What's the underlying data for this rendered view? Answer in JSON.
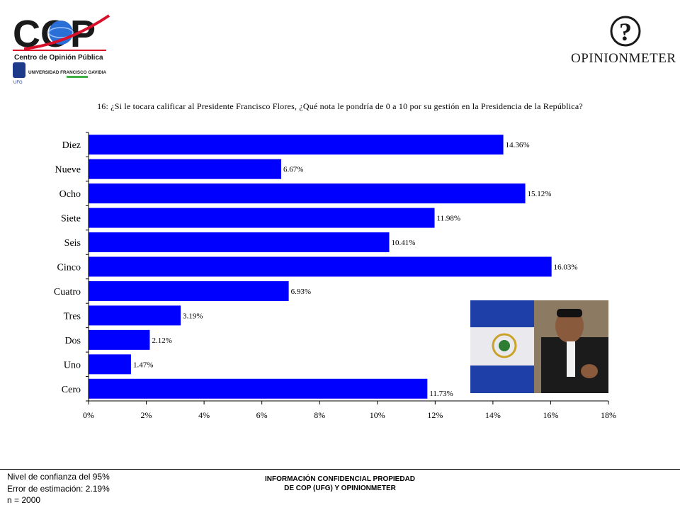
{
  "header": {
    "cop_logo_text": "COP",
    "cop_subtitle": "Centro de Opinión Pública",
    "university": "UNIVERSIDAD FRANCISCO GAVIDIA",
    "ufg_short": "UFG",
    "opinion_logo_icon": "question-mark-circle-icon",
    "opinion_brand": "OPINIONMETER"
  },
  "question": "16: ¿Si le tocara calificar al Presidente Francisco Flores, ¿Qué nota le pondría de 0 a 10 por su gestión en la Presidencia de la República?",
  "chart_data": {
    "type": "bar",
    "orientation": "horizontal",
    "categories": [
      "Diez",
      "Nueve",
      "Ocho",
      "Siete",
      "Seis",
      "Cinco",
      "Cuatro",
      "Tres",
      "Dos",
      "Uno",
      "Cero"
    ],
    "values": [
      14.36,
      6.67,
      15.12,
      11.98,
      10.41,
      16.03,
      6.93,
      3.19,
      2.12,
      1.47,
      11.73
    ],
    "data_labels": [
      "14.36%",
      "6.67%",
      "15.12%",
      "11.98%",
      "10.41%",
      "16.03%",
      "6.93%",
      "3.19%",
      "2.12%",
      "1.47%",
      "11.73%"
    ],
    "x_ticks": [
      "0%",
      "2%",
      "4%",
      "6%",
      "8%",
      "10%",
      "12%",
      "14%",
      "16%",
      "18%"
    ],
    "xlim": [
      0,
      18
    ],
    "bar_color": "#0000ff",
    "grid": false,
    "legend": "none"
  },
  "photo": {
    "description_icon": "photo-placeholder"
  },
  "footer": {
    "confidence": "Nivel de confianza del 95%",
    "error": "Error de estimación: 2.19%",
    "sample": "n = 2000",
    "notice_line1": "INFORMACIÓN CONFIDENCIAL PROPIEDAD",
    "notice_line2": "DE COP (UFG) Y OPINIONMETER"
  }
}
